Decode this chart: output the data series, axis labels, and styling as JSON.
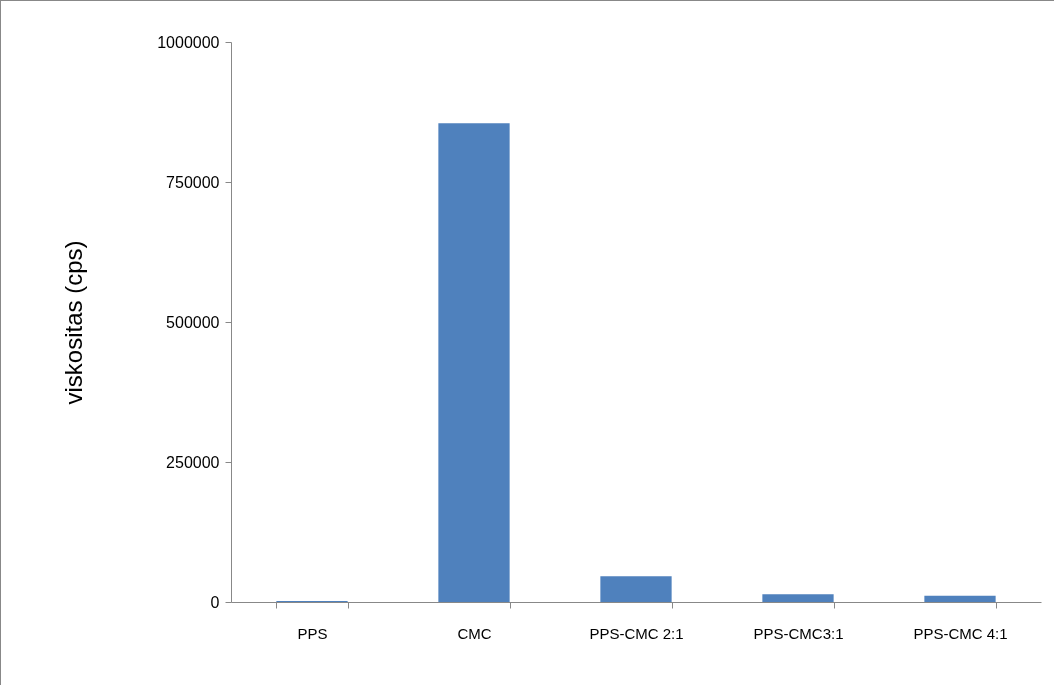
{
  "chart_data": {
    "type": "bar",
    "ylabel": "viskositas (cps)",
    "categories": [
      "PPS",
      "CMC",
      "PPS-CMC 2:1",
      "PPS-CMC3:1",
      "PPS-CMC 4:1"
    ],
    "values": [
      2000,
      855000,
      46000,
      14000,
      11000
    ],
    "color": "#4f81bd",
    "ylim": [
      0,
      1000000
    ],
    "yticks": [
      0,
      250000,
      500000,
      750000,
      1000000
    ],
    "grid": false
  }
}
